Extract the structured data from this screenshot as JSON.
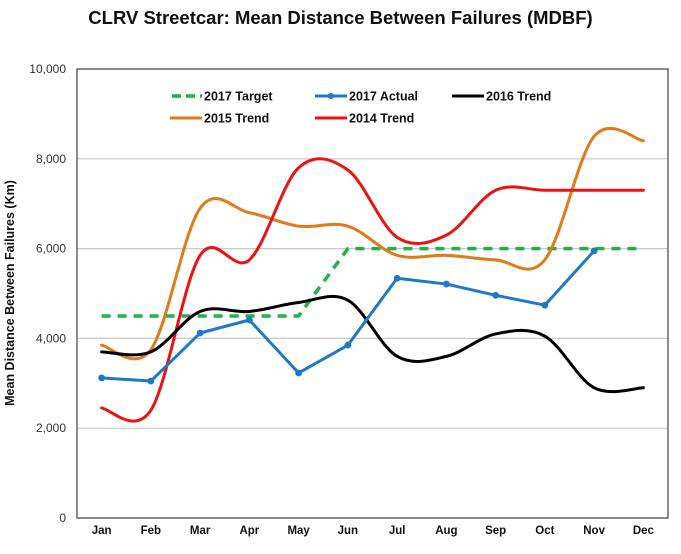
{
  "chart_data": {
    "type": "line",
    "title": "CLRV Streetcar: Mean Distance Between Failures (MDBF)",
    "xlabel": "",
    "ylabel": "Mean Distance Between Failures (Km)",
    "ylim": [
      0,
      10000
    ],
    "yticks": [
      0,
      2000,
      4000,
      6000,
      8000,
      10000
    ],
    "ytick_labels": [
      "0",
      "2,000",
      "4,000",
      "6,000",
      "8,000",
      "10,000"
    ],
    "grid": true,
    "legend_position": "top-inside",
    "categories": [
      "Jan",
      "Feb",
      "Mar",
      "Apr",
      "May",
      "Jun",
      "Jul",
      "Aug",
      "Sep",
      "Oct",
      "Nov",
      "Dec"
    ],
    "series": [
      {
        "name": "2017 Target",
        "color": "#22b04b",
        "style": "dashed",
        "smooth": false,
        "markers": false,
        "values": [
          4500,
          4500,
          4500,
          4500,
          4500,
          6000,
          6000,
          6000,
          6000,
          6000,
          6000,
          6000
        ]
      },
      {
        "name": "2017 Actual",
        "color": "#1f78c8",
        "style": "solid",
        "smooth": false,
        "markers": true,
        "values": [
          3120,
          3050,
          4120,
          4410,
          3230,
          3850,
          5340,
          5210,
          4960,
          4740,
          5950,
          null
        ]
      },
      {
        "name": "2016 Trend",
        "color": "#000000",
        "style": "solid",
        "smooth": true,
        "markers": false,
        "values": [
          3700,
          3700,
          4600,
          4600,
          4800,
          4850,
          3600,
          3600,
          4100,
          4050,
          2900,
          2900
        ]
      },
      {
        "name": "2015 Trend",
        "color": "#e07b1a",
        "style": "solid",
        "smooth": true,
        "markers": false,
        "values": [
          3850,
          3750,
          6900,
          6800,
          6500,
          6500,
          5850,
          5850,
          5750,
          5750,
          8500,
          8400
        ]
      },
      {
        "name": "2014 Trend",
        "color": "#ee1111",
        "style": "solid",
        "smooth": true,
        "markers": false,
        "values": [
          2450,
          2400,
          5850,
          5750,
          7800,
          7750,
          6250,
          6300,
          7300,
          7300,
          7300,
          7300
        ]
      }
    ]
  }
}
